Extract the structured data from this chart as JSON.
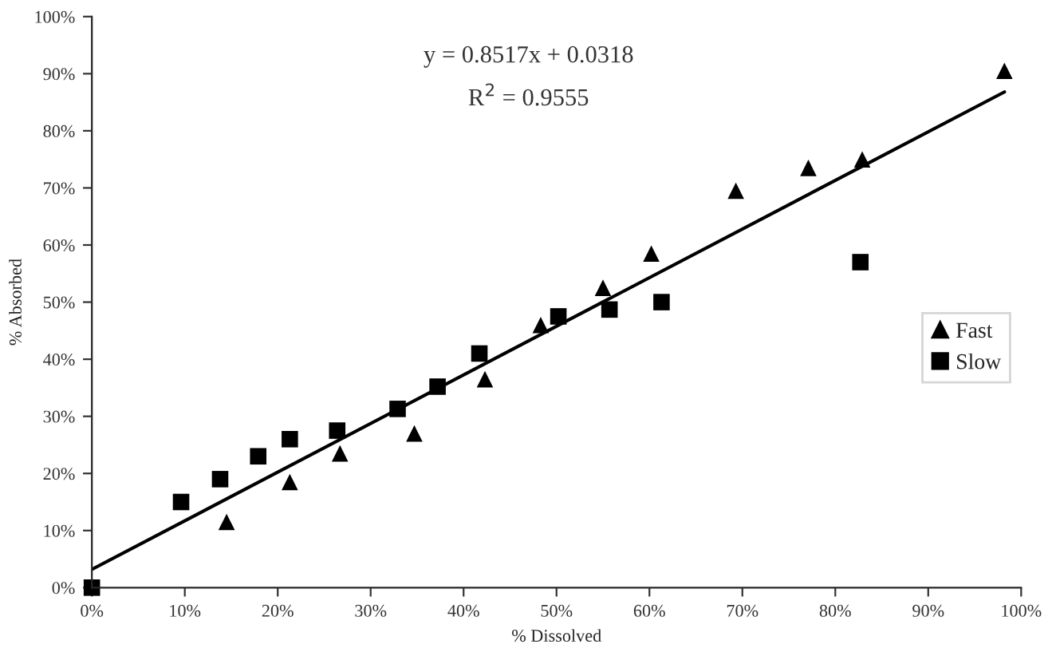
{
  "chart_data": {
    "type": "scatter",
    "xlabel": "% Dissolved",
    "ylabel": "% Absorbed",
    "series": [
      {
        "name": "Fast",
        "marker": "triangle",
        "color": "#000000",
        "x": [
          14.5,
          21.3,
          26.7,
          34.7,
          42.3,
          48.3,
          55,
          60.2,
          69.3,
          77.1,
          82.9,
          98.2
        ],
        "values": [
          11.5,
          18.5,
          23.5,
          27,
          36.5,
          46,
          52.5,
          58.5,
          69.5,
          73.5,
          75,
          90.5
        ]
      },
      {
        "name": "Slow",
        "marker": "square",
        "color": "#000000",
        "x": [
          0,
          9.6,
          13.8,
          17.9,
          21.3,
          26.4,
          32.9,
          37.2,
          41.7,
          50.2,
          55.7,
          61.3,
          82.7
        ],
        "values": [
          0,
          15,
          19,
          23,
          26,
          27.5,
          31.3,
          35.2,
          41,
          47.5,
          48.7,
          50,
          57
        ]
      },
      {
        "type": "line",
        "color": "#000000",
        "line_style": "solid",
        "x": [
          0,
          98.2
        ],
        "values": [
          3.2,
          86.8
        ]
      }
    ],
    "annotations": [
      "y = 0.8517x + 0.0318",
      "R$^{2}$ = 0.9555"
    ],
    "xlim": [
      0,
      100
    ],
    "ylim": [
      0,
      100
    ],
    "xticks": [
      {
        "value": 0,
        "label": "0%"
      },
      {
        "value": 10,
        "label": "10%"
      },
      {
        "value": 20,
        "label": "20%"
      },
      {
        "value": 30,
        "label": "30%"
      },
      {
        "value": 40,
        "label": "40%"
      },
      {
        "value": 50,
        "label": "50%"
      },
      {
        "value": 60,
        "label": "60%"
      },
      {
        "value": 70,
        "label": "70%"
      },
      {
        "value": 80,
        "label": "80%"
      },
      {
        "value": 90,
        "label": "90%"
      },
      {
        "value": 100,
        "label": "100%"
      }
    ],
    "yticks": [
      {
        "value": 0,
        "label": "0%"
      },
      {
        "value": 10,
        "label": "10%"
      },
      {
        "value": 20,
        "label": "20%"
      },
      {
        "value": 30,
        "label": "30%"
      },
      {
        "value": 40,
        "label": "40%"
      },
      {
        "value": 50,
        "label": "50%"
      },
      {
        "value": 60,
        "label": "60%"
      },
      {
        "value": 70,
        "label": "70%"
      },
      {
        "value": 80,
        "label": "80%"
      },
      {
        "value": 90,
        "label": "90%"
      },
      {
        "value": 100,
        "label": "100%"
      }
    ],
    "grid": false,
    "legend": "right"
  }
}
